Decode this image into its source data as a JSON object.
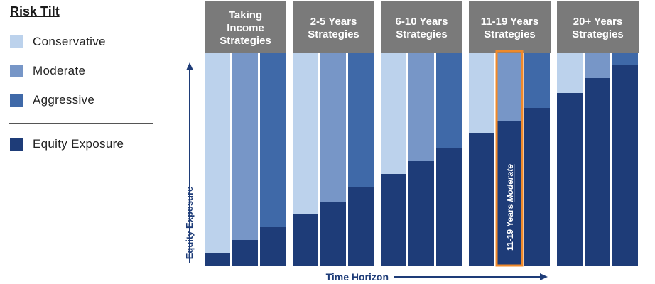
{
  "legend": {
    "title": "Risk Tilt",
    "items": [
      {
        "label": "Conservative",
        "color": "#bcd2ec"
      },
      {
        "label": "Moderate",
        "color": "#7796c7"
      },
      {
        "label": "Aggressive",
        "color": "#3f69a8"
      },
      {
        "label": "Equity Exposure",
        "color": "#1e3c78"
      }
    ]
  },
  "colors": {
    "header_bg": "#7a7a7a",
    "header_text": "#ffffff",
    "highlight": "#f0892a",
    "axis": "#1e3c78"
  },
  "chart_data": {
    "type": "bar",
    "stacked": true,
    "xlabel": "Time Horizon",
    "ylabel": "Equity Exposure",
    "ylim": [
      0,
      100
    ],
    "tilts": [
      "Conservative",
      "Moderate",
      "Aggressive"
    ],
    "groups": [
      {
        "name": "Taking Income Strategies",
        "header_lines": [
          "Taking",
          "Income",
          "Strategies"
        ],
        "equity": [
          6,
          12,
          18
        ]
      },
      {
        "name": "2-5 Years Strategies",
        "header_lines": [
          "2-5 Years",
          "Strategies"
        ],
        "equity": [
          24,
          30,
          37
        ]
      },
      {
        "name": "6-10 Years Strategies",
        "header_lines": [
          "6-10 Years",
          "Strategies"
        ],
        "equity": [
          43,
          49,
          55
        ]
      },
      {
        "name": "11-19 Years Strategies",
        "header_lines": [
          "11-19 Years",
          "Strategies"
        ],
        "equity": [
          62,
          68,
          74
        ]
      },
      {
        "name": "20+ Years Strategies",
        "header_lines": [
          "20+ Years",
          "Strategies"
        ],
        "equity": [
          81,
          88,
          94
        ]
      }
    ],
    "highlight": {
      "group": 3,
      "bar": 1,
      "label_main": "11-19 Years ",
      "label_em": "Moderate"
    }
  }
}
